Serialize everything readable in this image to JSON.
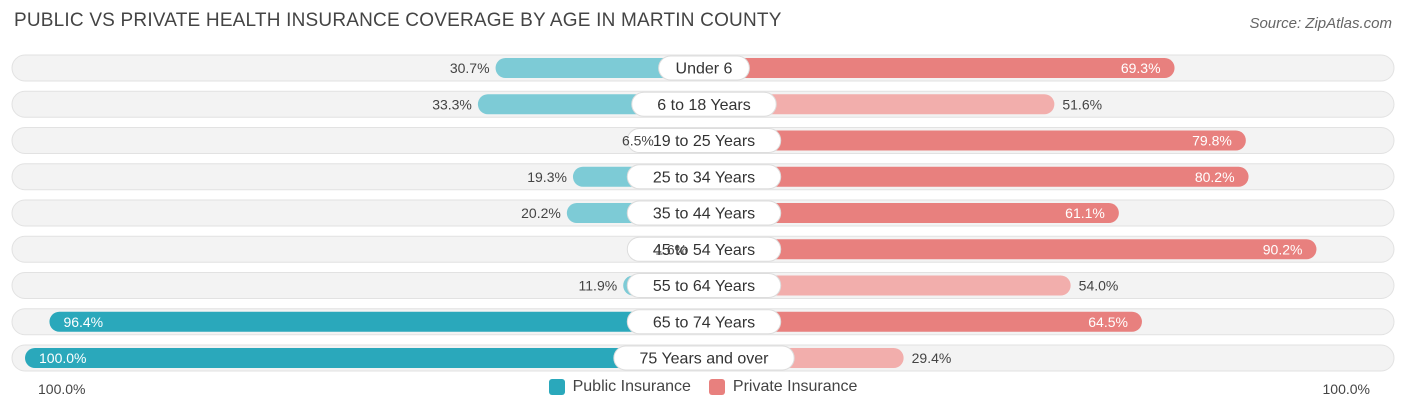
{
  "header": {
    "title": "PUBLIC VS PRIVATE HEALTH INSURANCE COVERAGE BY AGE IN MARTIN COUNTY",
    "source": "Source: ZipAtlas.com"
  },
  "axis": {
    "left_label": "100.0%",
    "right_label": "100.0%"
  },
  "colors": {
    "public": "#2aa8bb",
    "public_light": "#7dcbd6",
    "private": "#e8807e",
    "private_light": "#f2aeac",
    "track": "#efefef"
  },
  "chart_data": {
    "type": "bar",
    "orientation": "diverging-horizontal",
    "categories": [
      "Under 6",
      "6 to 18 Years",
      "19 to 25 Years",
      "25 to 34 Years",
      "35 to 44 Years",
      "45 to 54 Years",
      "55 to 64 Years",
      "65 to 74 Years",
      "75 Years and over"
    ],
    "series": [
      {
        "name": "Public Insurance",
        "values": [
          30.7,
          33.3,
          6.5,
          19.3,
          20.2,
          1.6,
          11.9,
          96.4,
          100.0
        ],
        "labels": [
          "30.7%",
          "33.3%",
          "6.5%",
          "19.3%",
          "20.2%",
          "1.6%",
          "11.9%",
          "96.4%",
          "100.0%"
        ]
      },
      {
        "name": "Private Insurance",
        "values": [
          69.3,
          51.6,
          79.8,
          80.2,
          61.1,
          90.2,
          54.0,
          64.5,
          29.4
        ],
        "labels": [
          "69.3%",
          "51.6%",
          "79.8%",
          "80.2%",
          "61.1%",
          "90.2%",
          "54.0%",
          "64.5%",
          "29.4%"
        ]
      }
    ],
    "xlim": [
      -100,
      100
    ],
    "legend": "bottom-center"
  }
}
